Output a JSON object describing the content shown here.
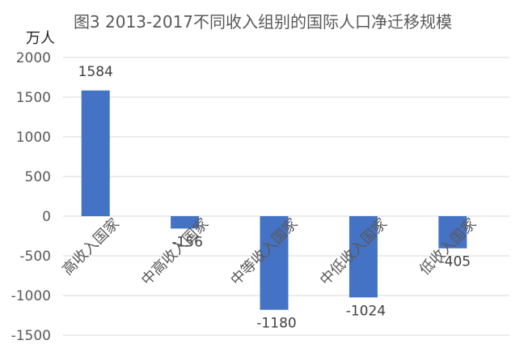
{
  "chart_data": {
    "type": "bar",
    "title": "图3   2013-2017不同收入组别的国际人口净迁移规模",
    "ylabel": "万人",
    "xlabel": "",
    "categories": [
      "高收入国家",
      "中高收入国家",
      "中等收入国家",
      "中低收入国家",
      "低收入国家"
    ],
    "values": [
      1584,
      -156,
      -1180,
      -1024,
      -405
    ],
    "ylim": [
      -1500,
      2000
    ],
    "yticks": [
      2000,
      1500,
      1000,
      500,
      0,
      -500,
      -1000,
      -1500
    ],
    "grid": true,
    "legend": "none",
    "bar_color": "#4472c4"
  }
}
